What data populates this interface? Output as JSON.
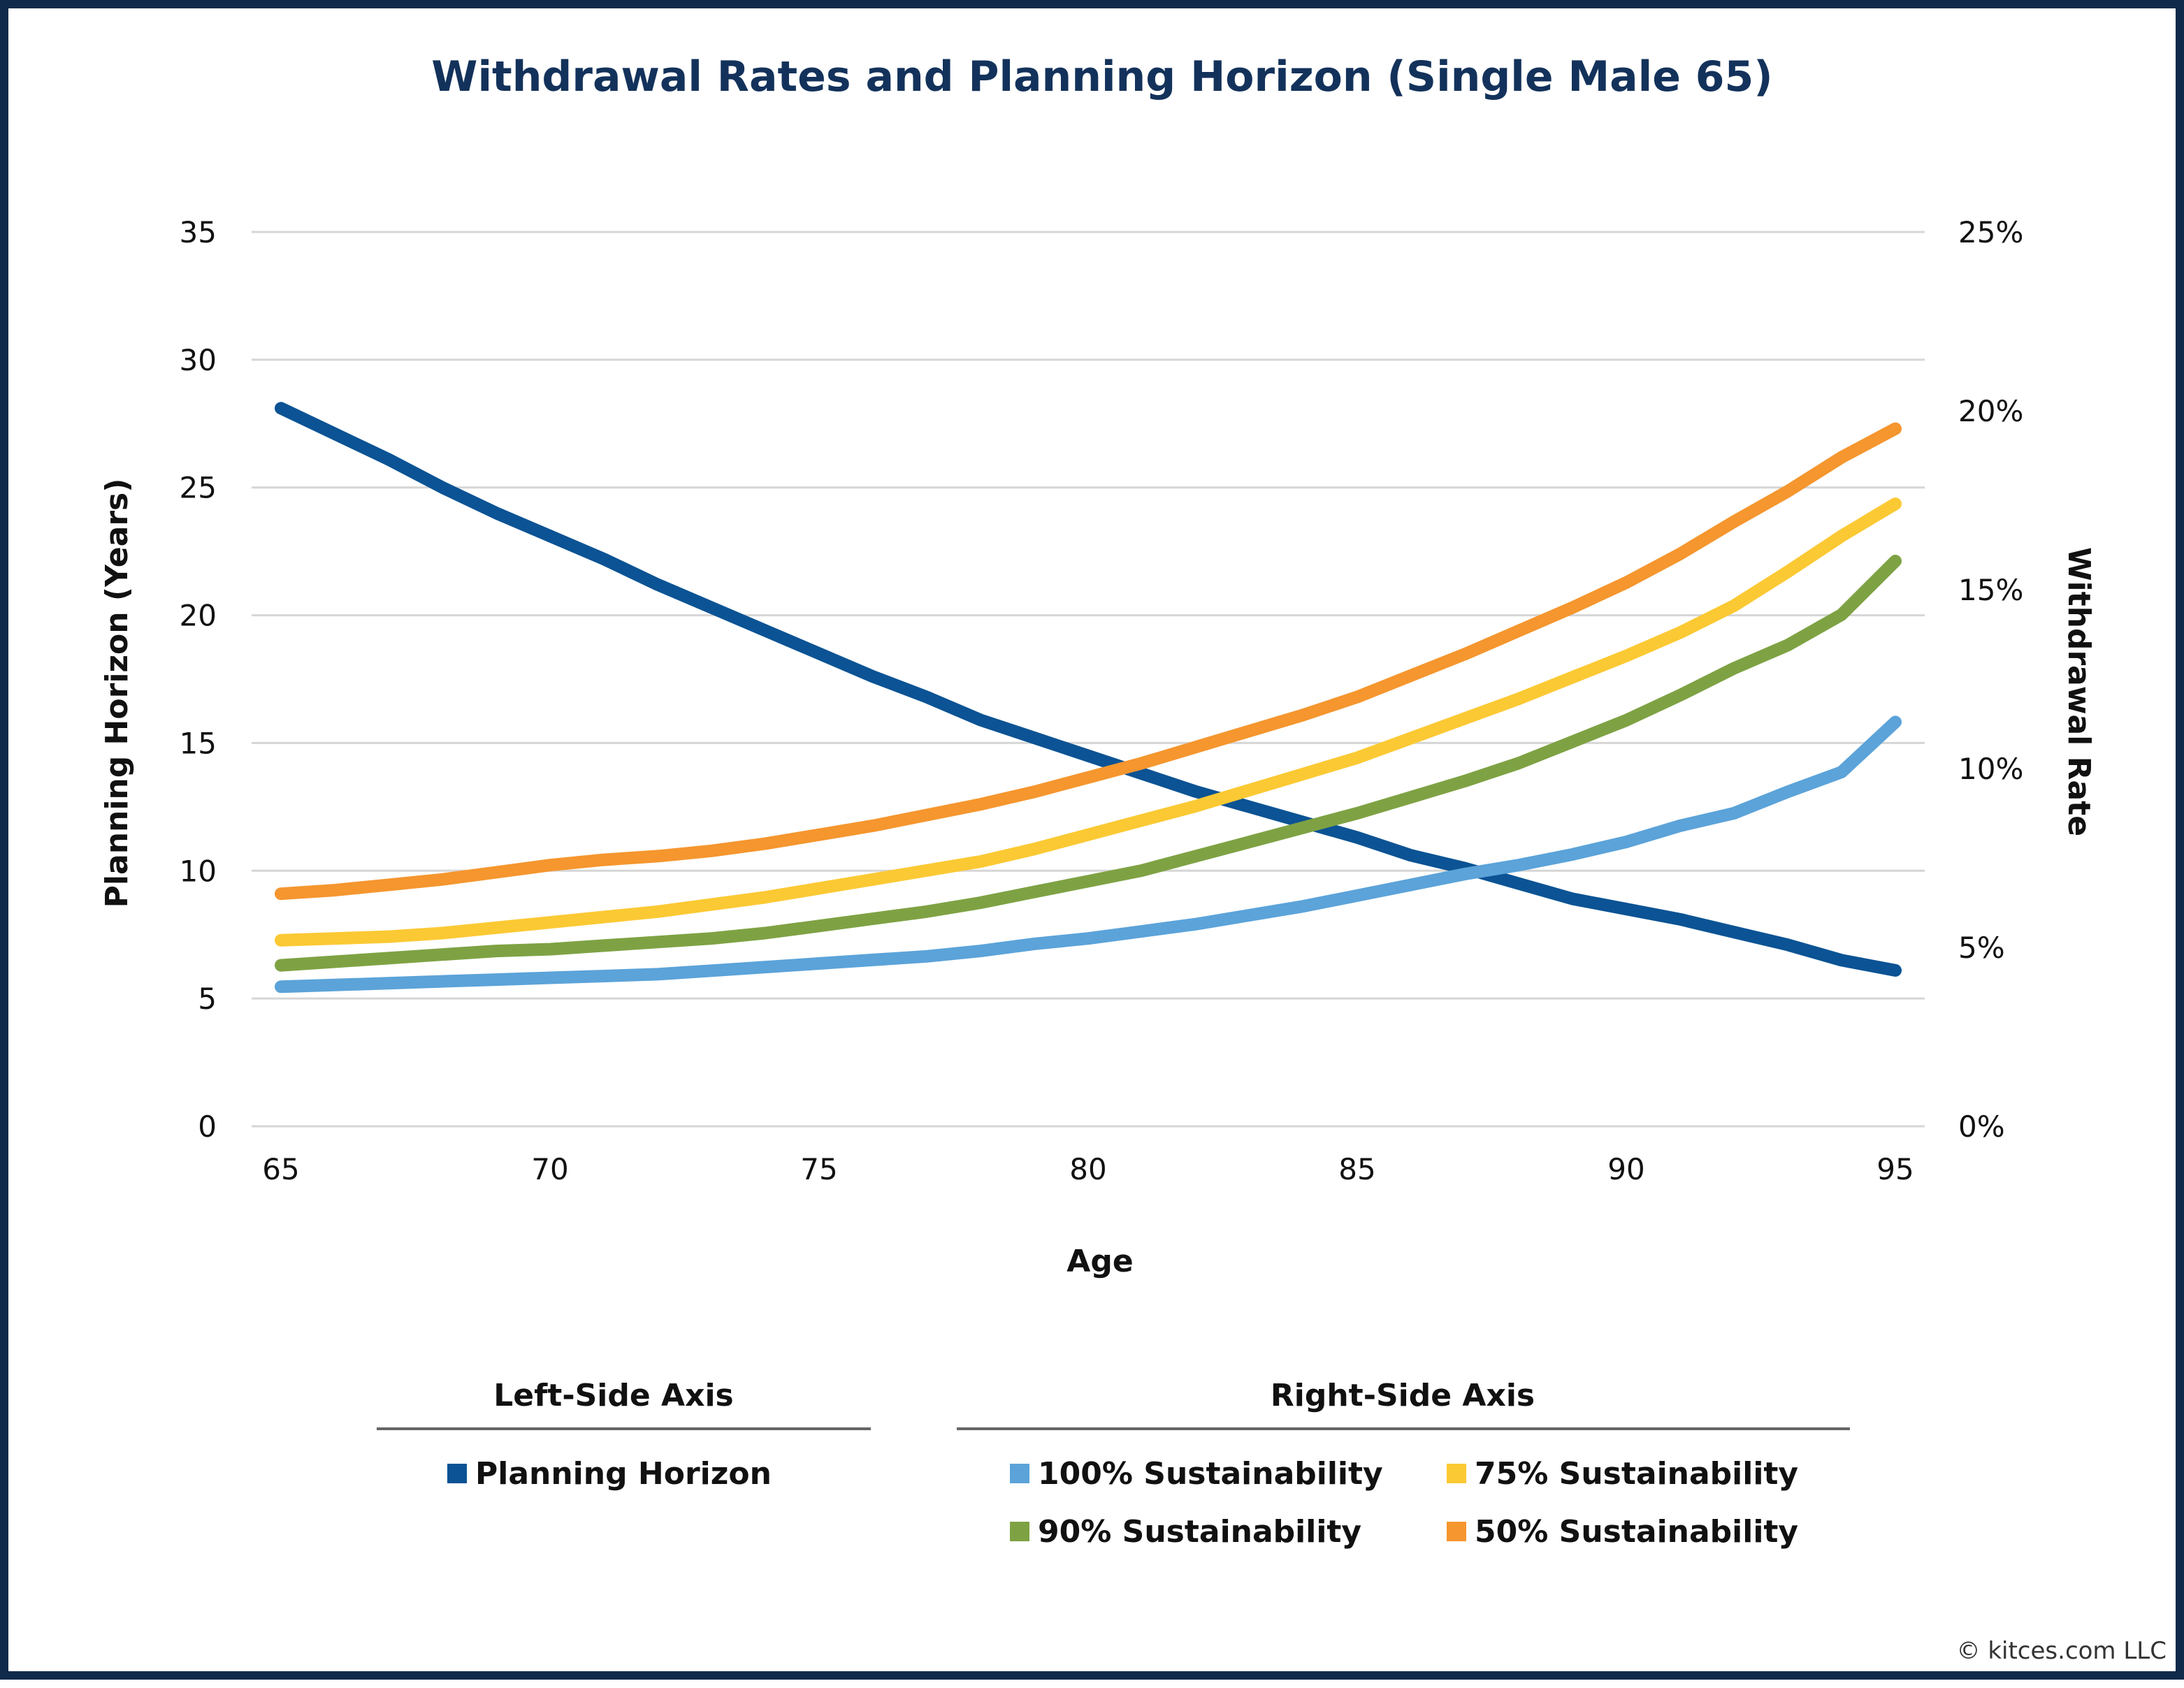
{
  "chart_data": {
    "type": "line",
    "title": "Withdrawal Rates and Planning Horizon (Single Male 65)",
    "xlabel": "Age",
    "ylabel_left": "Planning Horizon (Years)",
    "ylabel_right": "Withdrawal Rate",
    "x": [
      65,
      66,
      67,
      68,
      69,
      70,
      71,
      72,
      73,
      74,
      75,
      76,
      77,
      78,
      79,
      80,
      81,
      82,
      83,
      84,
      85,
      86,
      87,
      88,
      89,
      90,
      91,
      92,
      93,
      94,
      95
    ],
    "xlim": [
      65,
      95
    ],
    "x_ticks": [
      "65",
      "70",
      "75",
      "80",
      "85",
      "90",
      "95"
    ],
    "ylim_left": [
      0,
      35
    ],
    "y_ticks_left": [
      "0",
      "5",
      "10",
      "15",
      "20",
      "25",
      "30",
      "35"
    ],
    "ylim_right": [
      0,
      25
    ],
    "y_ticks_right": [
      "0%",
      "5%",
      "10%",
      "15%",
      "20%",
      "25%"
    ],
    "grid": true,
    "legend_placement": "bottom",
    "series": [
      {
        "name": "Planning Horizon",
        "axis": "left",
        "color": "#0b5394",
        "values": [
          28.1,
          27.1,
          26.1,
          25.0,
          24.0,
          23.1,
          22.2,
          21.2,
          20.3,
          19.4,
          18.5,
          17.6,
          16.8,
          15.9,
          15.2,
          14.5,
          13.8,
          13.1,
          12.5,
          11.9,
          11.3,
          10.6,
          10.1,
          9.5,
          8.9,
          8.5,
          8.1,
          7.6,
          7.1,
          6.5,
          6.1
        ]
      },
      {
        "name": "100% Sustainability",
        "axis": "right",
        "color": "#5ba3d9",
        "values": [
          3.9,
          3.95,
          4.0,
          4.05,
          4.1,
          4.15,
          4.2,
          4.25,
          4.35,
          4.45,
          4.55,
          4.65,
          4.75,
          4.9,
          5.1,
          5.25,
          5.45,
          5.65,
          5.9,
          6.15,
          6.45,
          6.75,
          7.05,
          7.3,
          7.6,
          7.95,
          8.4,
          8.75,
          9.35,
          9.9,
          11.3
        ]
      },
      {
        "name": "75% Sustainability",
        "axis": "right",
        "color": "#fbc933",
        "values": [
          5.2,
          5.25,
          5.3,
          5.4,
          5.55,
          5.7,
          5.85,
          6.0,
          6.2,
          6.4,
          6.65,
          6.9,
          7.15,
          7.4,
          7.75,
          8.15,
          8.55,
          8.95,
          9.4,
          9.85,
          10.3,
          10.85,
          11.4,
          11.95,
          12.55,
          13.15,
          13.8,
          14.55,
          15.5,
          16.5,
          17.4
        ]
      },
      {
        "name": "90% Sustainability",
        "axis": "right",
        "color": "#7ea243",
        "values": [
          4.5,
          4.6,
          4.7,
          4.8,
          4.9,
          4.95,
          5.05,
          5.15,
          5.25,
          5.4,
          5.6,
          5.8,
          6.0,
          6.25,
          6.55,
          6.85,
          7.15,
          7.55,
          7.95,
          8.35,
          8.75,
          9.2,
          9.65,
          10.15,
          10.75,
          11.35,
          12.05,
          12.8,
          13.45,
          14.3,
          15.8
        ]
      },
      {
        "name": "50% Sustainability",
        "axis": "right",
        "color": "#f5962e",
        "values": [
          6.5,
          6.6,
          6.75,
          6.9,
          7.1,
          7.3,
          7.45,
          7.55,
          7.7,
          7.9,
          8.15,
          8.4,
          8.7,
          9.0,
          9.35,
          9.75,
          10.15,
          10.6,
          11.05,
          11.5,
          12.0,
          12.6,
          13.2,
          13.85,
          14.5,
          15.2,
          16.0,
          16.9,
          17.75,
          18.7,
          19.5
        ]
      }
    ],
    "legend": {
      "left_heading": "Left-Side Axis",
      "right_heading": "Right-Side Axis",
      "left_items": [
        "Planning Horizon"
      ],
      "right_items": [
        "100% Sustainability",
        "75% Sustainability",
        "90% Sustainability",
        "50% Sustainability"
      ]
    }
  },
  "copyright": "© kitces.com LLC",
  "colors": {
    "frame": "#0f2a4a",
    "title": "#13325b",
    "grid": "#d6d6d6",
    "legend_rule": "#666666"
  }
}
